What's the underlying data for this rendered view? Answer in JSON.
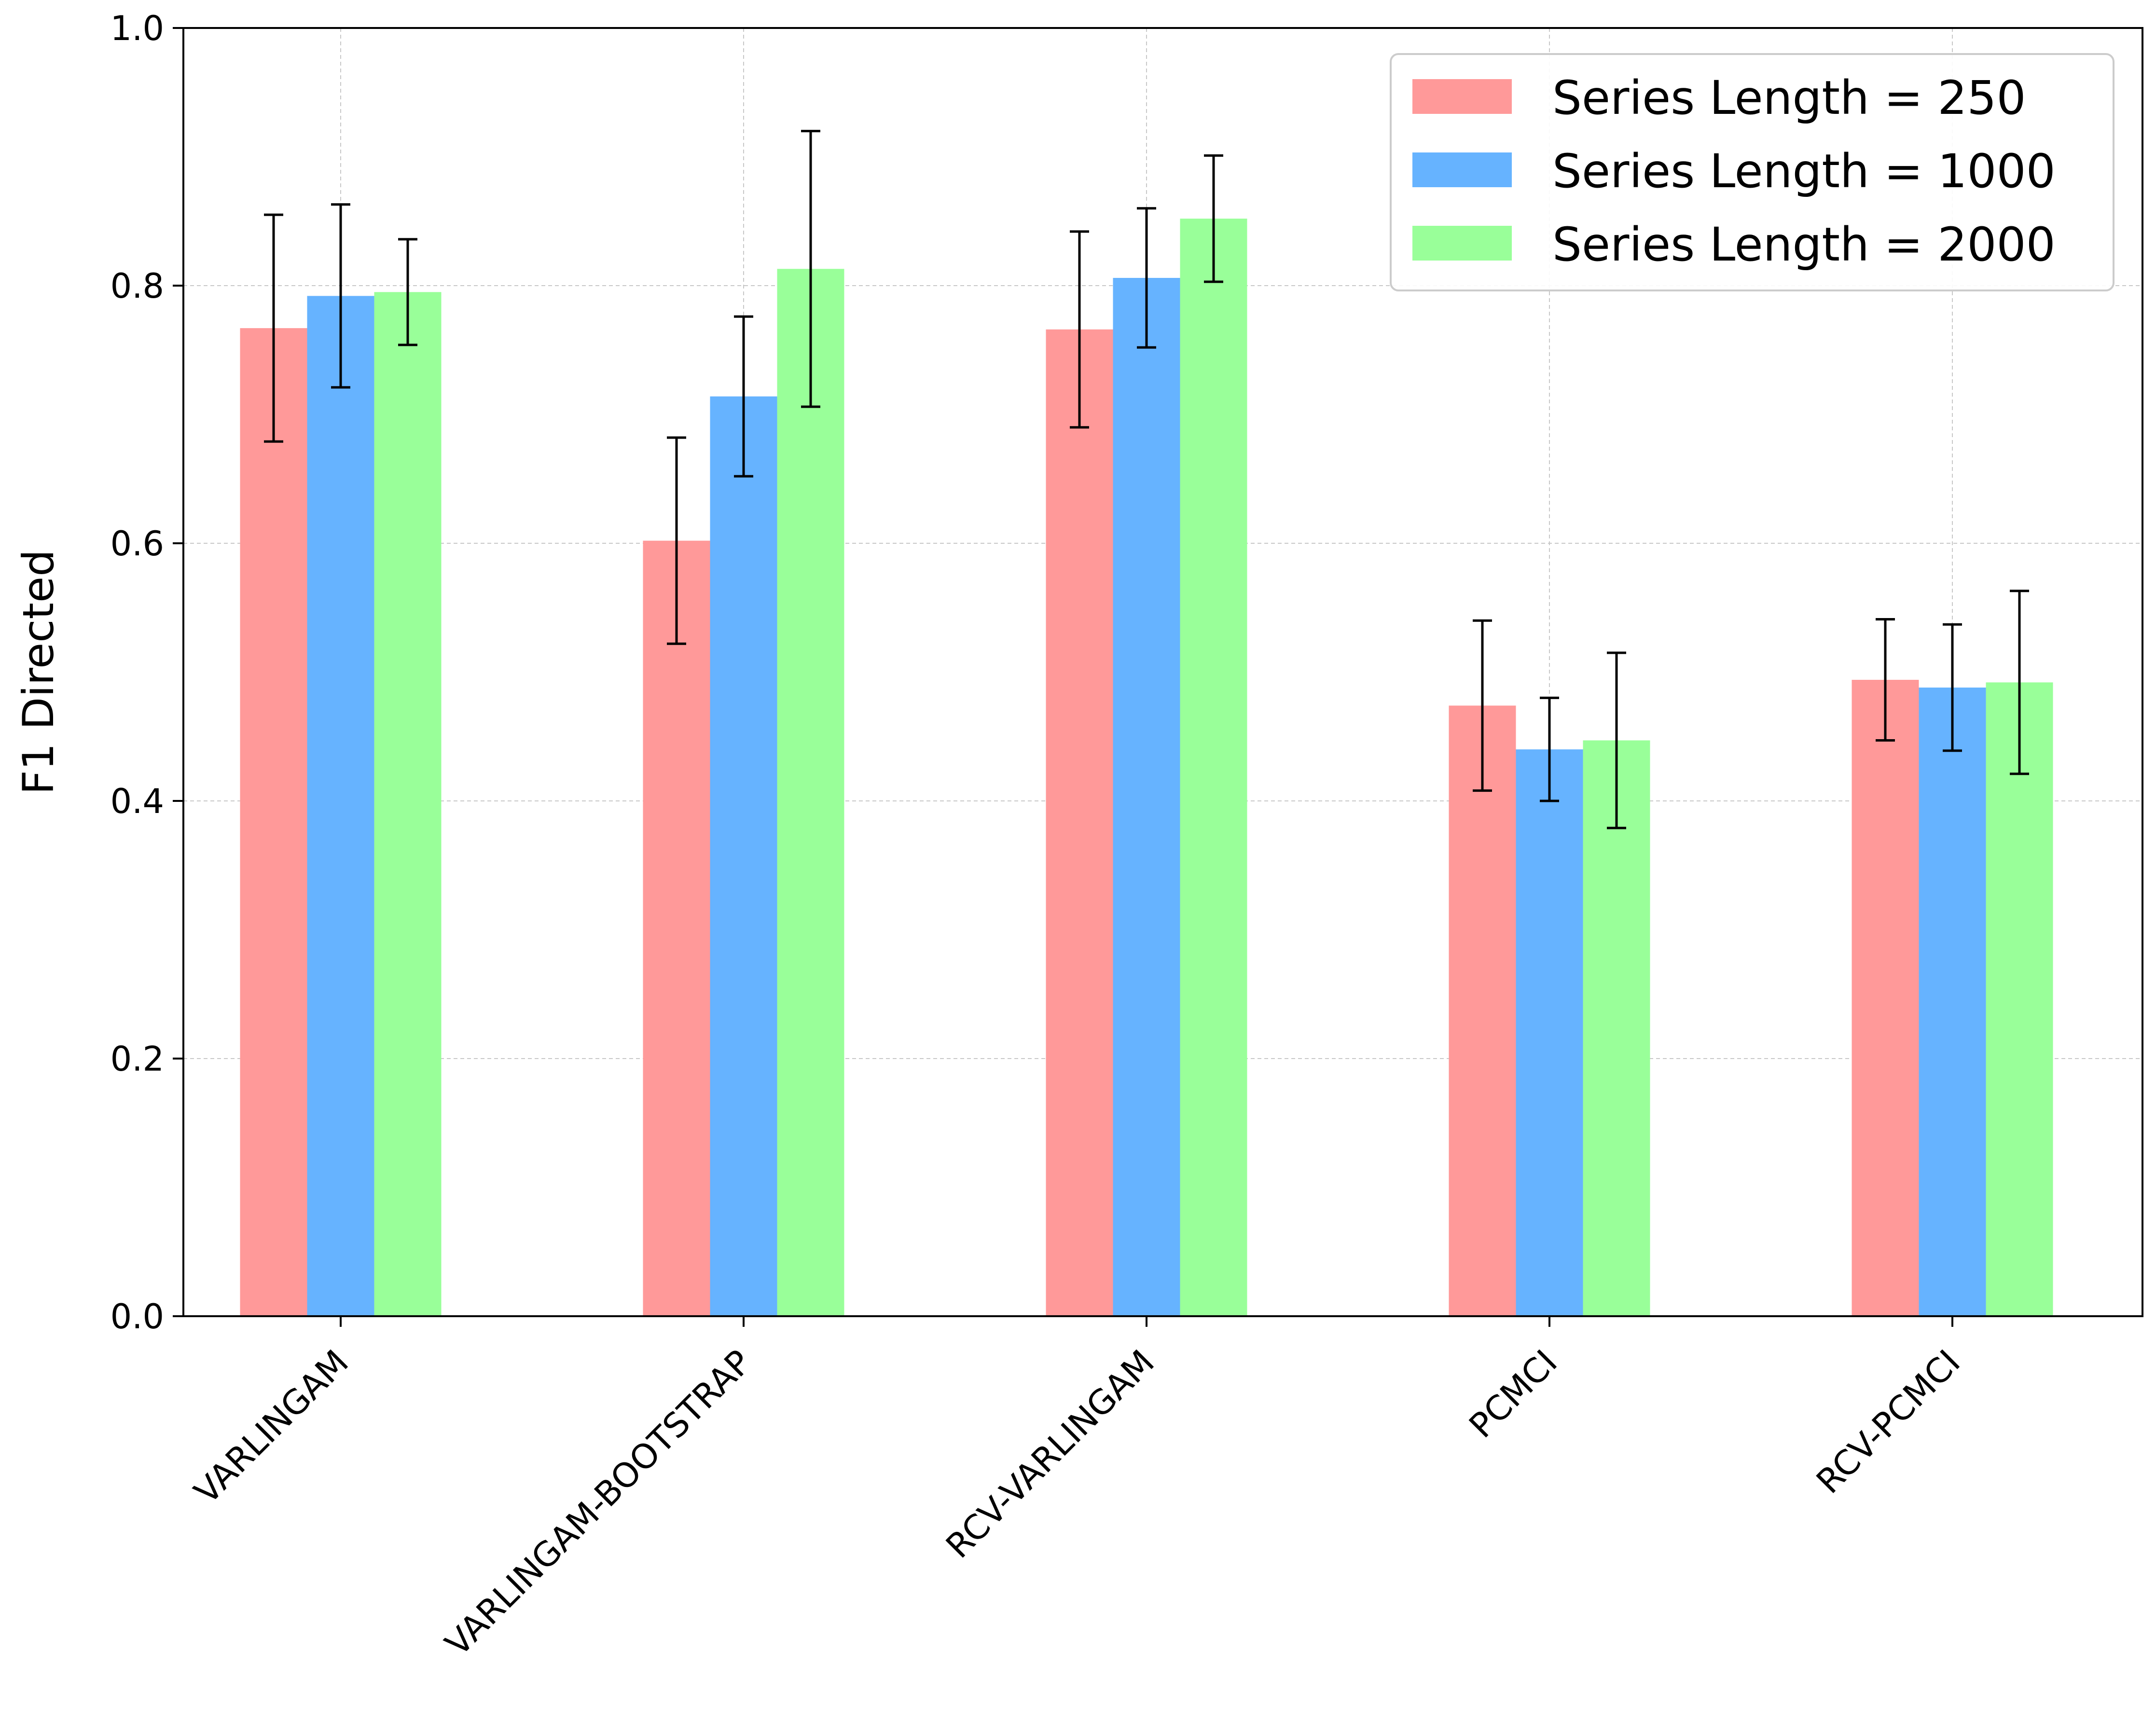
{
  "chart_data": {
    "type": "bar",
    "title": "",
    "xlabel": "",
    "ylabel": "F1 Directed",
    "ylim": [
      0,
      1.0
    ],
    "yticks": [
      "0.0",
      "0.2",
      "0.4",
      "0.6",
      "0.8",
      "1.0"
    ],
    "grid": true,
    "legend_position": "top-right",
    "categories": [
      "VARLINGAM",
      "VARLINGAM-BOOTSTRAP",
      "RCV-VARLINGAM",
      "PCMCI",
      "RCV-PCMCI"
    ],
    "series": [
      {
        "name": "Series Length = 250",
        "color": "#ff9999",
        "values": [
          0.767,
          0.602,
          0.766,
          0.474,
          0.494
        ],
        "error_low": [
          0.679,
          0.522,
          0.69,
          0.408,
          0.447
        ],
        "error_high": [
          0.855,
          0.682,
          0.842,
          0.54,
          0.541
        ]
      },
      {
        "name": "Series Length = 1000",
        "color": "#66b3ff",
        "values": [
          0.792,
          0.714,
          0.806,
          0.44,
          0.488
        ],
        "error_low": [
          0.721,
          0.652,
          0.752,
          0.4,
          0.439
        ],
        "error_high": [
          0.863,
          0.776,
          0.86,
          0.48,
          0.537
        ]
      },
      {
        "name": "Series Length = 2000",
        "color": "#99ff99",
        "values": [
          0.795,
          0.813,
          0.852,
          0.447,
          0.492
        ],
        "error_low": [
          0.754,
          0.706,
          0.803,
          0.379,
          0.421
        ],
        "error_high": [
          0.836,
          0.92,
          0.901,
          0.515,
          0.563
        ]
      }
    ]
  }
}
